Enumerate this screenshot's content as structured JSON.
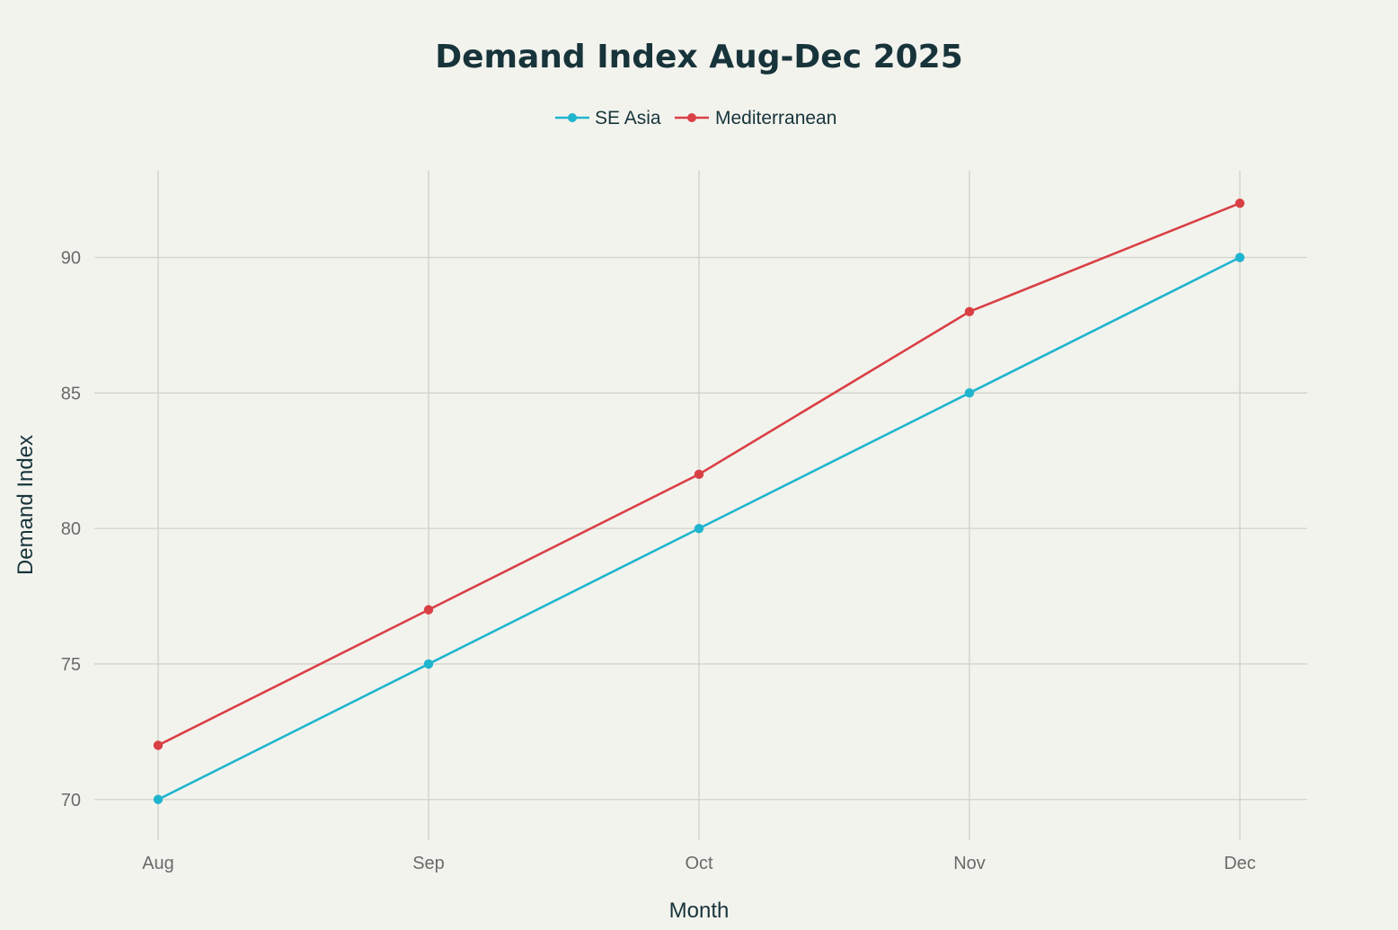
{
  "chart_data": {
    "type": "line",
    "title": "Demand Index Aug-Dec 2025",
    "xlabel": "Month",
    "ylabel": "Demand Index",
    "categories": [
      "Aug",
      "Sep",
      "Oct",
      "Nov",
      "Dec"
    ],
    "ylim": [
      68.5,
      93.2
    ],
    "yticks": [
      70,
      75,
      80,
      85,
      90
    ],
    "grid": true,
    "legend_position": "top-center",
    "series": [
      {
        "name": "SE Asia",
        "color": "#1fb5cf",
        "values": [
          70,
          75,
          80,
          85,
          90
        ]
      },
      {
        "name": "Mediterranean",
        "color": "#d94045",
        "values": [
          72,
          77,
          82,
          88,
          92
        ]
      }
    ]
  }
}
